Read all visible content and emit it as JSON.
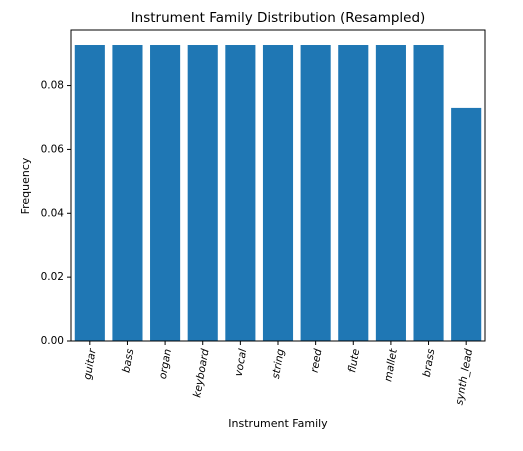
{
  "chart_data": {
    "type": "bar",
    "title": "Instrument Family Distribution (Resampled)",
    "xlabel": "Instrument Family",
    "ylabel": "Frequency",
    "categories": [
      "guitar",
      "bass",
      "organ",
      "keyboard",
      "vocal",
      "string",
      "reed",
      "flute",
      "mallet",
      "brass",
      "synth_lead"
    ],
    "values": [
      0.0927,
      0.0927,
      0.0927,
      0.0927,
      0.0927,
      0.0927,
      0.0927,
      0.0927,
      0.0927,
      0.0927,
      0.073
    ],
    "ylim": [
      0,
      0.0974
    ],
    "yticks": [
      0.0,
      0.02,
      0.04,
      0.06,
      0.08
    ],
    "ytick_labels": [
      "0.00",
      "0.02",
      "0.04",
      "0.06",
      "0.08"
    ],
    "grid": false,
    "bar_color": "#1f77b4"
  }
}
